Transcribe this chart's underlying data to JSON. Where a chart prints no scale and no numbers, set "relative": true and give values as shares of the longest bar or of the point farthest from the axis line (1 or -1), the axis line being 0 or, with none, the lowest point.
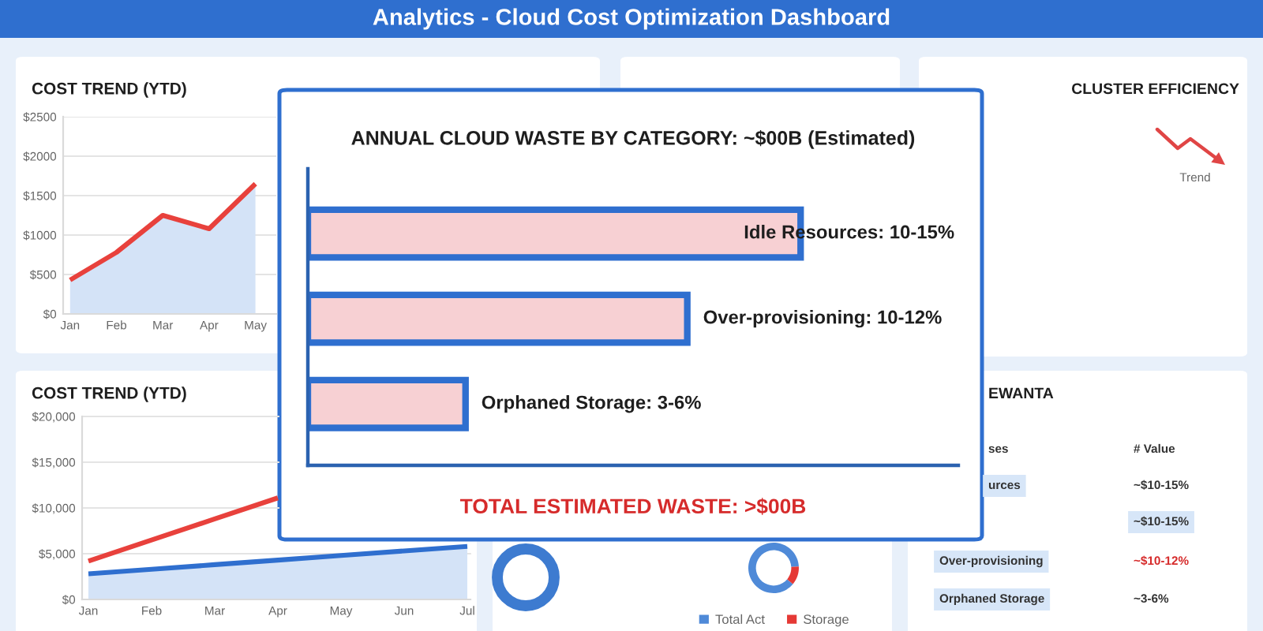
{
  "chart_data": [
    {
      "type": "other",
      "title": "Analytics - Cloud Cost Optimization Dashboard"
    },
    {
      "type": "area",
      "title": "COST TREND (YTD)",
      "categories": [
        "Jan",
        "Feb",
        "Mar",
        "Apr",
        "May"
      ],
      "series": [
        {
          "color": "#e8413c",
          "values": [
            430,
            780,
            1250,
            1080,
            1650
          ]
        }
      ],
      "ylim": [
        0,
        2500
      ],
      "yticks": [
        {
          "value": 0,
          "label": "$0"
        },
        {
          "value": 500,
          "label": "$500"
        },
        {
          "value": 1000,
          "label": "$1000"
        },
        {
          "value": 1500,
          "label": "$1500"
        },
        {
          "value": 2000,
          "label": "$2000"
        },
        {
          "value": 2500,
          "label": "$2500"
        }
      ],
      "grid": "y"
    },
    {
      "type": "bar",
      "orientation": "horizontal",
      "relative": true,
      "title": "ANNUAL CLOUD WASTE BY CATEGORY: ~$00B (Estimated)",
      "categories": [
        "Idle Resources: 10-15%",
        "Over-provisioning: 10-12%",
        "Orphaned Storage: 3-6%"
      ],
      "values": [
        1,
        0.77,
        0.32
      ],
      "color": "#f7d0d3",
      "annotations": [
        "TOTAL ESTIMATED WASTE: >$00B"
      ]
    },
    {
      "type": "other",
      "title": "CLUSTER EFFICIENCY",
      "annotations": [
        "Trend"
      ]
    },
    {
      "type": "line",
      "title": "COST TREND (YTD)",
      "categories": [
        "Jan",
        "Feb",
        "Mar",
        "Apr",
        "May",
        "Jun",
        "Jul"
      ],
      "series": [
        {
          "type": "area",
          "color": "#2f6fcf",
          "values": [
            2800,
            3300,
            3800,
            4300,
            4800,
            5300,
            5800
          ]
        },
        {
          "color": "#e8413c",
          "values": [
            4200,
            6500,
            8800,
            11100,
            null,
            null,
            null
          ]
        }
      ],
      "ylim": [
        0,
        20000
      ],
      "yticks": [
        {
          "value": 0,
          "label": "$0"
        },
        {
          "value": 5000,
          "label": "$5,000"
        },
        {
          "value": 10000,
          "label": "$10,000"
        },
        {
          "value": 15000,
          "label": "$15,000"
        },
        {
          "value": 20000,
          "label": "$20,000"
        }
      ],
      "grid": "y"
    },
    {
      "type": "other",
      "title": "EWANTA",
      "annotations": [
        "ses",
        "# Value",
        "urces",
        "~$10-15%",
        "~$10-15%",
        "Over-provisioning",
        "~$10-12%",
        "Orphaned Storage",
        "~3-6%"
      ]
    },
    {
      "type": "donut",
      "categories": [
        "Total Act",
        "Storage"
      ],
      "values": [
        88,
        12
      ],
      "colors": [
        "#4f8ad8",
        "#e53935"
      ],
      "legend": "bottom"
    }
  ]
}
